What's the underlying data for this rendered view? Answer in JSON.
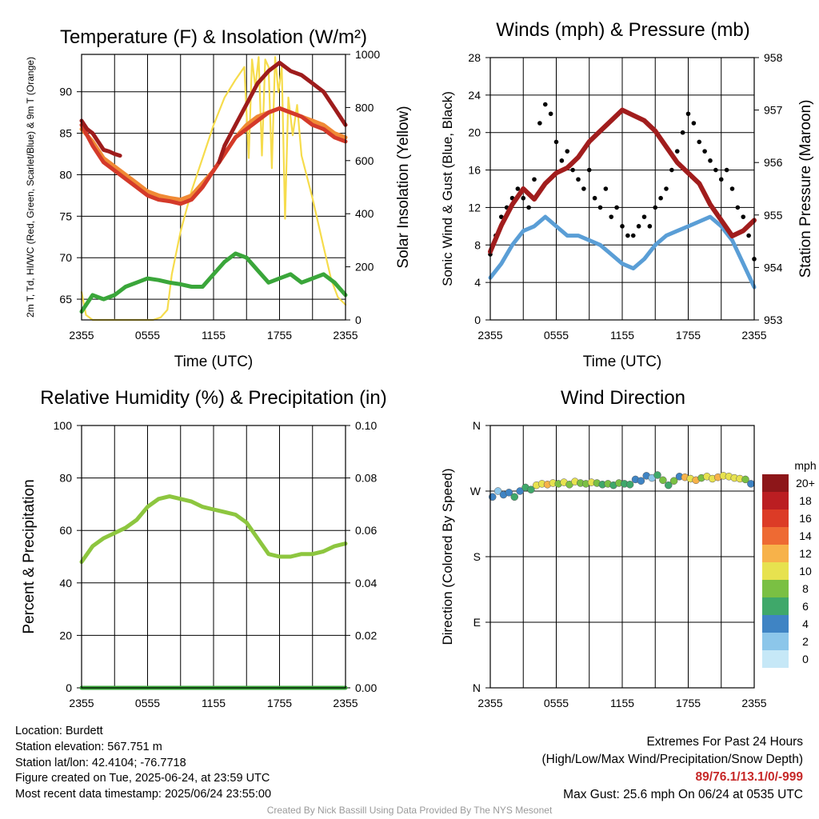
{
  "colors": {
    "temp": "#d43a2a",
    "dew": "#3aa63a",
    "hiwc": "#9e1c1c",
    "t9m": "#f08a35",
    "solar": "#f6dc4c",
    "wind": "#5a9ed6",
    "gust": "#000000",
    "pressure": "#a11d1d",
    "rh": "#8dc63f",
    "precip": "#3aa63a"
  },
  "chart_data": [
    {
      "id": "temp",
      "type": "line",
      "title": "Temperature (F) & Insolation (W/m²)",
      "xlabel": "Time (UTC)",
      "ylabel": "2m T, Td, HI/WC (Red, Green, Scarlet/Blue) & 9m T (Orange)",
      "y2label": "Solar Insolation (Yellow)",
      "xticks": [
        "2355",
        "0555",
        "1155",
        "1755",
        "2355"
      ],
      "xlim": [
        0,
        24
      ],
      "ylim": [
        62.5,
        94.5
      ],
      "yticks": [
        65,
        70,
        75,
        80,
        85,
        90
      ],
      "y2lim": [
        0,
        1050
      ],
      "y2ticks": [
        0,
        200,
        400,
        600,
        800,
        1000
      ],
      "series": [
        {
          "key": "solar",
          "axis": "y2",
          "x": [
            0,
            0.4,
            1,
            3,
            5,
            6.5,
            7.2,
            7.8,
            8.2,
            9,
            10,
            11,
            12,
            13,
            14,
            14.8,
            15.2,
            15.5,
            15.8,
            16.1,
            16.4,
            16.7,
            17,
            17.3,
            17.6,
            17.9,
            18.2,
            18.5,
            18.8,
            19.2,
            19.6,
            20,
            21,
            22,
            22.7,
            23.3,
            24
          ],
          "values": [
            110,
            20,
            0,
            0,
            0,
            0,
            10,
            40,
            180,
            350,
            510,
            640,
            770,
            880,
            950,
            1000,
            640,
            1030,
            920,
            1040,
            650,
            1030,
            1000,
            600,
            1040,
            900,
            1000,
            400,
            880,
            730,
            850,
            650,
            480,
            290,
            160,
            90,
            60
          ]
        },
        {
          "key": "t9m",
          "axis": "y",
          "x": [
            0,
            1,
            2,
            3,
            4,
            5,
            6,
            7,
            8,
            9,
            10,
            11,
            12,
            13,
            14,
            15,
            16,
            17,
            18,
            19,
            20,
            21,
            22,
            23,
            24
          ],
          "values": [
            85.5,
            84.0,
            82.0,
            81.0,
            80.0,
            79.0,
            78.0,
            77.5,
            77.2,
            77.0,
            77.5,
            79.0,
            80.5,
            82.5,
            84.5,
            86.0,
            87.0,
            87.5,
            88.0,
            87.5,
            87.0,
            86.5,
            86.0,
            85.0,
            84.5
          ]
        },
        {
          "key": "temp",
          "axis": "y",
          "x": [
            0,
            1,
            2,
            3,
            4,
            5,
            6,
            7,
            8,
            9,
            10,
            11,
            12,
            13,
            14,
            15,
            16,
            17,
            18,
            19,
            20,
            21,
            22,
            23,
            24
          ],
          "values": [
            86.0,
            83.5,
            81.5,
            80.5,
            79.5,
            78.5,
            77.5,
            77.0,
            76.8,
            76.5,
            77.0,
            78.5,
            80.5,
            82.5,
            84.5,
            85.5,
            86.5,
            87.5,
            88.0,
            87.5,
            87.0,
            86.0,
            85.5,
            84.5,
            84.0
          ]
        },
        {
          "key": "hiwc",
          "axis": "y",
          "x": [
            0,
            0.5,
            1,
            1.5,
            2,
            2.5,
            3,
            3.5
          ],
          "values": [
            86.5,
            85.5,
            85.0,
            84.0,
            83.0,
            82.8,
            82.5,
            82.3
          ]
        },
        {
          "key": "hiwc",
          "axis": "y",
          "x": [
            12.5,
            13,
            14,
            15,
            16,
            17,
            18,
            19,
            20,
            21,
            22,
            23,
            24
          ],
          "values": [
            81.5,
            83.5,
            86.0,
            88.5,
            91.0,
            92.5,
            93.5,
            92.5,
            92.0,
            91.0,
            90.0,
            88.0,
            86.0
          ]
        },
        {
          "key": "dew",
          "axis": "y",
          "x": [
            0,
            1,
            2,
            3,
            4,
            5,
            6,
            7,
            8,
            9,
            10,
            11,
            12,
            13,
            14,
            15,
            16,
            17,
            18,
            19,
            20,
            21,
            22,
            23,
            24
          ],
          "values": [
            63.5,
            65.5,
            65.0,
            65.5,
            66.5,
            67.0,
            67.5,
            67.3,
            67.0,
            66.8,
            66.5,
            66.5,
            68.0,
            69.5,
            70.5,
            70.0,
            68.5,
            67.0,
            67.5,
            68.0,
            67.0,
            67.5,
            68.0,
            67.0,
            65.5
          ]
        }
      ]
    },
    {
      "id": "wind",
      "type": "line",
      "title": "Winds (mph) & Pressure (mb)",
      "xlabel": "Time (UTC)",
      "ylabel": "Sonic Wind & Gust (Blue, Black)",
      "y2label": "Station Pressure (Maroon)",
      "xticks": [
        "2355",
        "0555",
        "1155",
        "1755",
        "2355"
      ],
      "xlim": [
        0,
        24
      ],
      "ylim": [
        0,
        28
      ],
      "yticks": [
        0,
        4,
        8,
        12,
        16,
        20,
        24,
        28
      ],
      "y2lim": [
        953,
        958
      ],
      "y2ticks": [
        953,
        954,
        955,
        956,
        957,
        958
      ],
      "series": [
        {
          "key": "wind",
          "axis": "y",
          "x": [
            0,
            1,
            2,
            3,
            4,
            5,
            6,
            7,
            8,
            9,
            10,
            11,
            12,
            13,
            14,
            15,
            16,
            17,
            18,
            19,
            20,
            21,
            22,
            23,
            24
          ],
          "values": [
            4.5,
            6.0,
            8.0,
            9.5,
            10.0,
            11.0,
            10.0,
            9.0,
            9.0,
            8.5,
            8.0,
            7.0,
            6.0,
            5.5,
            6.5,
            8.0,
            9.0,
            9.5,
            10.0,
            10.5,
            11.0,
            10.0,
            8.5,
            6.0,
            3.5
          ]
        },
        {
          "key": "gust",
          "axis": "y",
          "type": "scatter",
          "x": [
            0,
            0.5,
            1,
            1.5,
            2,
            2.5,
            3,
            3.5,
            4,
            4.5,
            5,
            5.5,
            6,
            6.5,
            7,
            7.5,
            8,
            8.5,
            9,
            9.5,
            10,
            10.5,
            11,
            11.5,
            12,
            12.5,
            13,
            13.5,
            14,
            14.5,
            15,
            15.5,
            16,
            16.5,
            17,
            17.5,
            18,
            18.5,
            19,
            19.5,
            20,
            20.5,
            21,
            21.5,
            22,
            22.5,
            23,
            23.5,
            24
          ],
          "values": [
            7,
            9,
            11,
            12,
            13,
            14,
            13,
            12,
            15,
            21,
            23,
            22,
            19,
            17,
            18,
            16,
            15,
            14,
            16,
            13,
            12,
            14,
            11,
            12,
            10,
            9,
            9,
            10,
            11,
            10,
            12,
            13,
            14,
            16,
            18,
            20,
            22,
            21,
            19,
            18,
            17,
            16,
            15,
            16,
            14,
            12,
            11,
            9,
            6.5
          ]
        },
        {
          "key": "pressure",
          "axis": "y2",
          "x": [
            0,
            1,
            2,
            3,
            4,
            5,
            6,
            7,
            8,
            9,
            10,
            11,
            12,
            13,
            14,
            15,
            16,
            17,
            18,
            19,
            20,
            21,
            22,
            23,
            24
          ],
          "values": [
            954.3,
            954.8,
            955.2,
            955.5,
            955.3,
            955.6,
            955.8,
            955.9,
            956.1,
            956.4,
            956.6,
            956.8,
            957.0,
            956.9,
            956.8,
            956.6,
            956.3,
            956.0,
            955.8,
            955.6,
            955.2,
            954.9,
            954.6,
            954.7,
            954.9
          ]
        }
      ]
    },
    {
      "id": "rh",
      "type": "line",
      "title": "Relative Humidity (%) & Precipitation (in)",
      "ylabel": "Percent & Precipitation",
      "xticks": [
        "2355",
        "0555",
        "1155",
        "1755",
        "2355"
      ],
      "xlim": [
        0,
        24
      ],
      "ylim": [
        0,
        100
      ],
      "yticks": [
        0,
        20,
        40,
        60,
        80,
        100
      ],
      "y2lim": [
        0,
        0.1
      ],
      "y2ticks": [
        "0.00",
        "0.02",
        "0.04",
        "0.06",
        "0.08",
        "0.10"
      ],
      "series": [
        {
          "key": "rh",
          "axis": "y",
          "x": [
            0,
            1,
            2,
            3,
            4,
            5,
            6,
            7,
            8,
            9,
            10,
            11,
            12,
            13,
            14,
            15,
            16,
            17,
            18,
            19,
            20,
            21,
            22,
            23,
            24
          ],
          "values": [
            48,
            54,
            57,
            59,
            61,
            64,
            69,
            72,
            73,
            72,
            71,
            69,
            68,
            67,
            66,
            63,
            57,
            51,
            50,
            50,
            51,
            51,
            52,
            54,
            55
          ]
        },
        {
          "key": "precip",
          "axis": "y2",
          "x": [
            0,
            24
          ],
          "values": [
            0,
            0
          ]
        }
      ]
    },
    {
      "id": "dir",
      "type": "scatter",
      "title": "Wind Direction",
      "ylabel": "Direction (Colored By Speed)",
      "xticks": [
        "2355",
        "0555",
        "1155",
        "1755",
        "2355"
      ],
      "xlim": [
        0,
        24
      ],
      "ylim": [
        0,
        360
      ],
      "yticks": [
        "N",
        "E",
        "S",
        "W",
        "N"
      ],
      "legend_title": "mph",
      "legend_labels": [
        "0",
        "2",
        "4",
        "6",
        "8",
        "10",
        "12",
        "14",
        "16",
        "18",
        "20+"
      ],
      "legend_colors": [
        "#c6e8f7",
        "#8cc6ea",
        "#3f84c4",
        "#3fa86a",
        "#7ac043",
        "#e7e24f",
        "#f7b24a",
        "#ee6a33",
        "#dc3b26",
        "#bb1e22",
        "#8d1619"
      ],
      "series": [
        {
          "name": "",
          "x": [
            0.2,
            0.7,
            1.2,
            1.7,
            2.2,
            2.7,
            3.2,
            3.7,
            4.2,
            4.7,
            5.2,
            5.7,
            6.2,
            6.7,
            7.2,
            7.7,
            8.2,
            8.7,
            9.2,
            9.7,
            10.2,
            10.7,
            11.2,
            11.7,
            12.2,
            12.7,
            13.2,
            13.7,
            14.2,
            14.7,
            15.2,
            15.7,
            16.2,
            16.7,
            17.2,
            17.7,
            18.2,
            18.7,
            19.2,
            19.7,
            20.2,
            20.7,
            21.2,
            21.7,
            22.2,
            22.7,
            23.2,
            23.7
          ],
          "values": [
            262,
            270,
            265,
            268,
            262,
            270,
            275,
            272,
            278,
            280,
            279,
            281,
            280,
            282,
            279,
            283,
            281,
            280,
            282,
            281,
            279,
            280,
            278,
            281,
            280,
            279,
            286,
            284,
            291,
            288,
            292,
            285,
            278,
            284,
            290,
            289,
            287,
            285,
            288,
            290,
            287,
            289,
            291,
            290,
            288,
            287,
            286,
            280
          ],
          "speeds": [
            4,
            3,
            5,
            4,
            6,
            4,
            6,
            7,
            11,
            10,
            12,
            11,
            9,
            10,
            8,
            11,
            9,
            8,
            10,
            9,
            7,
            8,
            7,
            8,
            7,
            6,
            4,
            5,
            4,
            3,
            6,
            9,
            7,
            8,
            5,
            13,
            11,
            12,
            9,
            10,
            11,
            12,
            10,
            11,
            10,
            11,
            8,
            4
          ]
        }
      ]
    }
  ],
  "footer": {
    "location": "Location: Burdett",
    "elevation": "Station elevation: 567.751 m",
    "latlon": "Station lat/lon: 42.4104; -76.7718",
    "created": "Figure created on Tue, 2025-06-24, at 23:59 UTC",
    "recent": "Most recent data timestamp: 2025/06/24 23:55:00",
    "extremes_title": "Extremes For Past 24 Hours",
    "extremes_desc": "(High/Low/Max Wind/Precipitation/Snow Depth)",
    "extremes_values": "89/76.1/13.1/0/-999",
    "max_gust": "Max Gust: 25.6 mph On 06/24 at 0535 UTC",
    "credit": "Created By Nick Bassill Using Data Provided By The NYS Mesonet"
  }
}
